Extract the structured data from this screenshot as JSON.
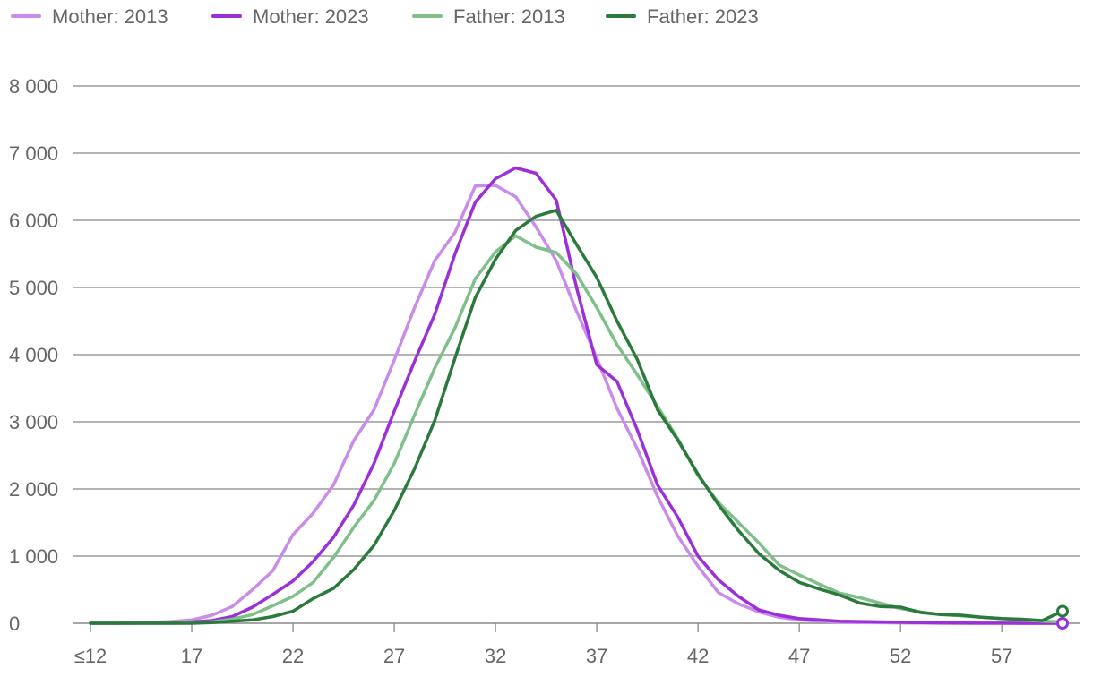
{
  "chart_data": {
    "type": "line",
    "title": "",
    "xlabel": "",
    "ylabel": "",
    "ylim": [
      0,
      8000
    ],
    "yticks": [
      0,
      1000,
      2000,
      3000,
      4000,
      5000,
      6000,
      7000,
      8000
    ],
    "ytick_labels": [
      "0",
      "1 000",
      "2 000",
      "3 000",
      "4 000",
      "5 000",
      "6 000",
      "7 000",
      "8 000"
    ],
    "x": [
      12,
      13,
      14,
      15,
      16,
      17,
      18,
      19,
      20,
      21,
      22,
      23,
      24,
      25,
      26,
      27,
      28,
      29,
      30,
      31,
      32,
      33,
      34,
      35,
      36,
      37,
      38,
      39,
      40,
      41,
      42,
      43,
      44,
      45,
      46,
      47,
      48,
      49,
      50,
      51,
      52,
      53,
      54,
      55,
      56,
      57,
      58,
      59,
      60
    ],
    "xlim": [
      12,
      60
    ],
    "xticks": [
      12,
      17,
      22,
      27,
      32,
      37,
      42,
      47,
      52,
      57
    ],
    "xtick_labels": [
      "≤12",
      "17",
      "22",
      "27",
      "32",
      "37",
      "42",
      "47",
      "52",
      "57"
    ],
    "grid": true,
    "legend_position": "top-left",
    "series": [
      {
        "name": "Mother: 2013",
        "color": "#c98ce8",
        "values": [
          0,
          0,
          5,
          15,
          25,
          50,
          120,
          250,
          500,
          780,
          1320,
          1640,
          2060,
          2720,
          3180,
          3920,
          4700,
          5400,
          5820,
          6510,
          6520,
          6350,
          5900,
          5400,
          4650,
          3950,
          3200,
          2600,
          1890,
          1300,
          850,
          460,
          290,
          170,
          90,
          50,
          30,
          15,
          10,
          8,
          5,
          3,
          2,
          0,
          0,
          0,
          0,
          0,
          0
        ]
      },
      {
        "name": "Mother: 2023",
        "color": "#9b30d9",
        "values": [
          0,
          0,
          0,
          5,
          10,
          20,
          40,
          100,
          240,
          430,
          630,
          920,
          1280,
          1760,
          2380,
          3160,
          3900,
          4600,
          5500,
          6270,
          6620,
          6780,
          6700,
          6300,
          5000,
          3850,
          3600,
          2880,
          2060,
          1580,
          1000,
          650,
          400,
          200,
          120,
          70,
          50,
          30,
          25,
          20,
          15,
          10,
          5,
          3,
          2,
          1,
          0,
          0,
          0
        ]
      },
      {
        "name": "Father: 2013",
        "color": "#7fbf8a",
        "values": [
          0,
          0,
          0,
          0,
          0,
          5,
          20,
          60,
          130,
          260,
          400,
          610,
          980,
          1430,
          1830,
          2380,
          3100,
          3800,
          4400,
          5130,
          5530,
          5770,
          5600,
          5520,
          5200,
          4700,
          4150,
          3700,
          3230,
          2750,
          2200,
          1800,
          1500,
          1200,
          870,
          720,
          580,
          450,
          380,
          300,
          220,
          170,
          130,
          110,
          90,
          70,
          50,
          30,
          20
        ]
      },
      {
        "name": "Father: 2023",
        "color": "#2b7a3b",
        "values": [
          0,
          0,
          0,
          0,
          0,
          0,
          10,
          30,
          50,
          100,
          180,
          370,
          520,
          800,
          1160,
          1680,
          2300,
          3020,
          3950,
          4850,
          5420,
          5850,
          6060,
          6150,
          5640,
          5150,
          4500,
          3930,
          3180,
          2730,
          2220,
          1770,
          1380,
          1040,
          790,
          610,
          510,
          420,
          300,
          250,
          240,
          160,
          130,
          120,
          90,
          70,
          60,
          40,
          180
        ]
      }
    ]
  }
}
